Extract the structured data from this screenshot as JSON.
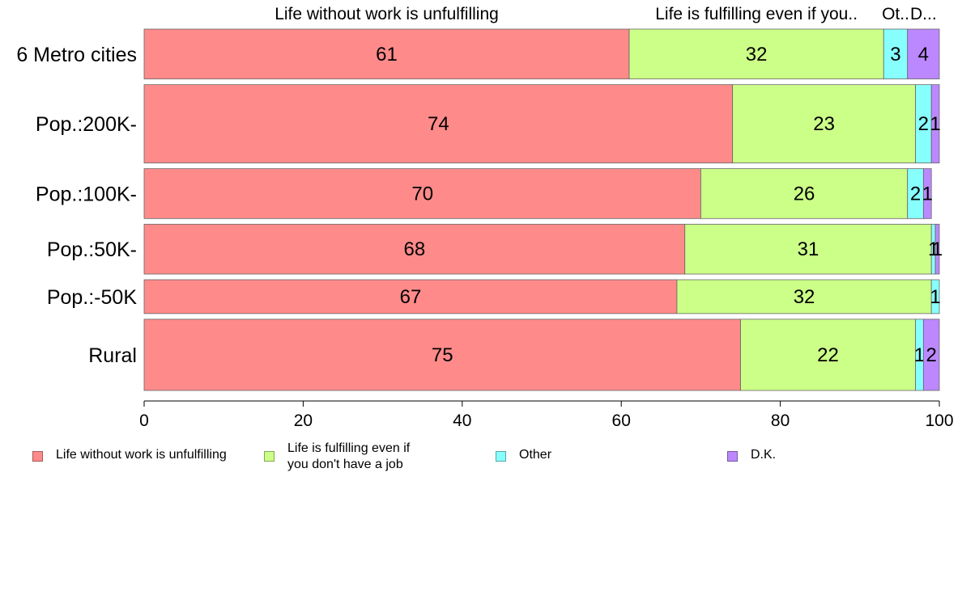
{
  "chart_data": {
    "type": "bar",
    "orientation": "horizontal",
    "stacked": true,
    "categories": [
      "6 Metro cities",
      "Pop.:200K-",
      "Pop.:100K-",
      "Pop.:50K-",
      "Pop.:-50K",
      "Rural"
    ],
    "series": [
      {
        "name": "Life without work is unfulfilling",
        "color": "#FF8A8A",
        "values": [
          61,
          74,
          70,
          68,
          67,
          75
        ]
      },
      {
        "name": "Life is fulfilling even if you don't have a job",
        "color": "#CCFF88",
        "values": [
          32,
          23,
          26,
          31,
          32,
          22
        ]
      },
      {
        "name": "Other",
        "color": "#88FFFF",
        "values": [
          3,
          2,
          2,
          0.5,
          1,
          1
        ]
      },
      {
        "name": "D.K.",
        "color": "#BB88FF",
        "values": [
          4,
          1,
          1,
          0.5,
          0,
          2
        ]
      }
    ],
    "data_labels": [
      [
        "61",
        "32",
        "3",
        "4"
      ],
      [
        "74",
        "23",
        "2",
        "1"
      ],
      [
        "70",
        "26",
        "2",
        "1"
      ],
      [
        "68",
        "31",
        "1",
        "1"
      ],
      [
        "67",
        "32",
        "1",
        ""
      ],
      [
        "75",
        "22",
        "1",
        "2"
      ]
    ],
    "bar_weights": [
      0.56,
      0.88,
      0.56,
      0.56,
      0.38,
      0.8
    ],
    "top_labels": [
      "Life without work is unfulfilling",
      "Life is fulfilling even if you..",
      "Ot..",
      "D..."
    ],
    "xlim": [
      0,
      100
    ],
    "xticks": [
      0,
      20,
      40,
      60,
      80,
      100
    ],
    "grid": false,
    "legend_position": "bottom"
  },
  "legend": {
    "items": [
      {
        "label": "Life without work is unfulfilling",
        "color": "#FF8A8A"
      },
      {
        "label": "Life is fulfilling even if\nyou don't have a job",
        "color": "#CCFF88"
      },
      {
        "label": "Other",
        "color": "#88FFFF"
      },
      {
        "label": "D.K.",
        "color": "#BB88FF"
      }
    ]
  }
}
